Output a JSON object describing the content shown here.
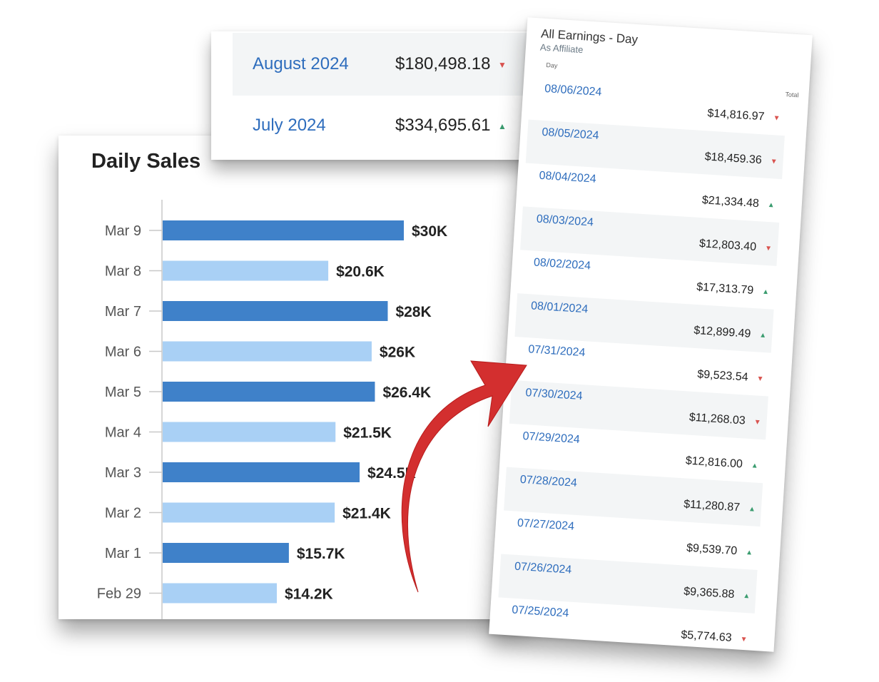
{
  "chart_data": {
    "type": "bar",
    "orientation": "horizontal",
    "title": "Daily Sales",
    "categories": [
      "Mar 9",
      "Mar 8",
      "Mar 7",
      "Mar 6",
      "Mar 5",
      "Mar 4",
      "Mar 3",
      "Mar 2",
      "Mar 1",
      "Feb 29"
    ],
    "values": [
      30000,
      20600,
      28000,
      26000,
      26400,
      21500,
      24500,
      21400,
      15700,
      14200
    ],
    "value_labels": [
      "$30K",
      "$20.6K",
      "$28K",
      "$26K",
      "$26.4K",
      "$21.5K",
      "$24.5K",
      "$21.4K",
      "$15.7K",
      "$14.2K"
    ],
    "xlim": [
      0,
      30000
    ],
    "grid": false,
    "colors": {
      "dark": "#3f81c9",
      "light": "#a9d0f5"
    }
  },
  "monthly": [
    {
      "label": "August 2024",
      "value": "$180,498.18",
      "trend": "down"
    },
    {
      "label": "July 2024",
      "value": "$334,695.61",
      "trend": "up"
    }
  ],
  "earnings": {
    "title": "All Earnings - Day",
    "subtitle": "As Affiliate",
    "col_day": "Day",
    "col_total": "Total",
    "rows": [
      {
        "date": "08/06/2024",
        "total": "$14,816.97",
        "trend": "down"
      },
      {
        "date": "08/05/2024",
        "total": "$18,459.36",
        "trend": "down"
      },
      {
        "date": "08/04/2024",
        "total": "$21,334.48",
        "trend": "up"
      },
      {
        "date": "08/03/2024",
        "total": "$12,803.40",
        "trend": "down"
      },
      {
        "date": "08/02/2024",
        "total": "$17,313.79",
        "trend": "up"
      },
      {
        "date": "08/01/2024",
        "total": "$12,899.49",
        "trend": "up"
      },
      {
        "date": "07/31/2024",
        "total": "$9,523.54",
        "trend": "down"
      },
      {
        "date": "07/30/2024",
        "total": "$11,268.03",
        "trend": "down"
      },
      {
        "date": "07/29/2024",
        "total": "$12,816.00",
        "trend": "up"
      },
      {
        "date": "07/28/2024",
        "total": "$11,280.87",
        "trend": "up"
      },
      {
        "date": "07/27/2024",
        "total": "$9,539.70",
        "trend": "up"
      },
      {
        "date": "07/26/2024",
        "total": "$9,365.88",
        "trend": "up"
      },
      {
        "date": "07/25/2024",
        "total": "$5,774.63",
        "trend": "down"
      }
    ]
  },
  "icons": {
    "up": "triangle-up-icon",
    "down": "triangle-down-icon",
    "arrow": "curved-arrow-icon"
  },
  "accent": {
    "link": "#2e6dbd",
    "up": "#3a9c6f",
    "down": "#d9534f",
    "arrow": "#d32f2f"
  }
}
